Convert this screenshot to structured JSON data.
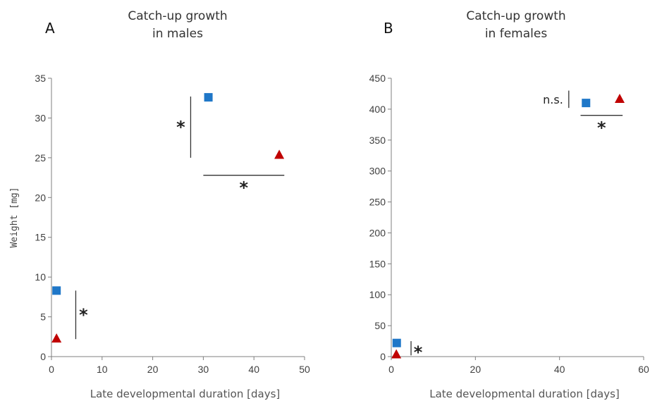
{
  "chart_data": [
    {
      "type": "scatter",
      "panel_letter": "A",
      "title_lines": [
        "Catch-up growth",
        "in males"
      ],
      "xlabel": "Late developmental duration [days]",
      "ylabel": "Weight [mg]",
      "xlim": [
        0,
        50
      ],
      "ylim": [
        0,
        35
      ],
      "xticks": [
        0,
        10,
        20,
        30,
        40,
        50
      ],
      "yticks": [
        0,
        5,
        10,
        15,
        20,
        25,
        30,
        35
      ],
      "grid": false,
      "series": [
        {
          "marker": "square",
          "color": "#1f77c8",
          "points": [
            [
              1,
              8.3
            ],
            [
              31,
              32.6
            ]
          ]
        },
        {
          "marker": "triangle",
          "color": "#c00000",
          "points": [
            [
              1,
              2.3
            ],
            [
              45,
              25.4
            ]
          ]
        }
      ],
      "annotations": [
        {
          "kind": "vertical",
          "label": "*",
          "x": 4.8,
          "y_range": [
            2.2,
            8.3
          ]
        },
        {
          "kind": "vertical",
          "label": "*",
          "x": 27.5,
          "y_range": [
            25.0,
            32.7
          ]
        },
        {
          "kind": "horizontal",
          "label": "*",
          "y": 22.8,
          "x_range": [
            30,
            46
          ]
        }
      ]
    },
    {
      "type": "scatter",
      "panel_letter": "B",
      "title_lines": [
        "Catch-up growth",
        "in females"
      ],
      "xlabel": "Late developmental duration [days]",
      "ylabel": "",
      "xlim": [
        0,
        60
      ],
      "ylim": [
        0,
        450
      ],
      "xticks": [
        0,
        20,
        40,
        60
      ],
      "yticks": [
        0,
        50,
        100,
        150,
        200,
        250,
        300,
        350,
        400,
        450
      ],
      "grid": false,
      "series": [
        {
          "marker": "square",
          "color": "#1f77c8",
          "points": [
            [
              1.3,
              22
            ],
            [
              46.3,
              410
            ]
          ]
        },
        {
          "marker": "triangle",
          "color": "#c00000",
          "points": [
            [
              1.2,
              4
            ],
            [
              54.3,
              417
            ]
          ]
        }
      ],
      "annotations": [
        {
          "kind": "vertical",
          "label": "*",
          "x": 4.7,
          "y_range": [
            2,
            25
          ]
        },
        {
          "kind": "vertical",
          "label": "n.s.",
          "x": 42.2,
          "y_range": [
            402,
            430
          ]
        },
        {
          "kind": "horizontal",
          "label": "*",
          "y": 390,
          "x_range": [
            45,
            55
          ]
        }
      ]
    }
  ]
}
